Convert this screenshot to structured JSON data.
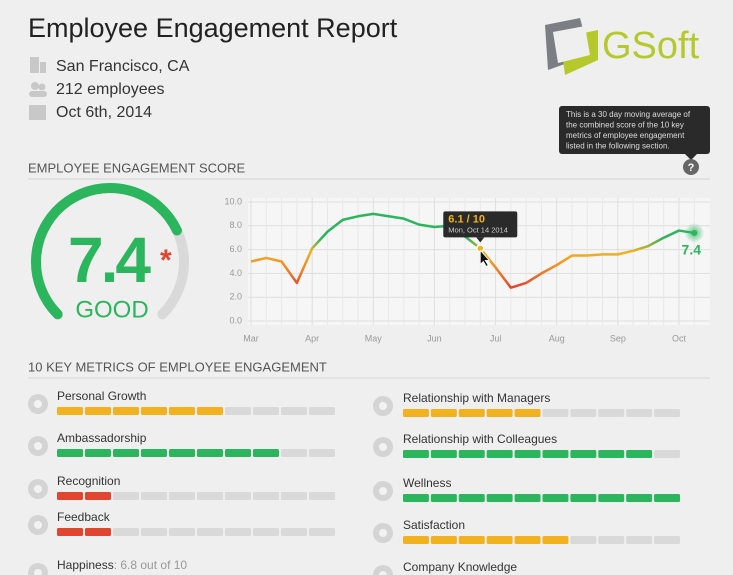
{
  "header": {
    "title": "Employee Engagement Report",
    "location": "San Francisco, CA",
    "employees": "212 employees",
    "date": "Oct 6th, 2014",
    "logo": "GSoft"
  },
  "info_tooltip": [
    "This is a 30 day moving average of",
    "the combined score of the 10 key",
    "metrics of employee engagement",
    "listed in the following section."
  ],
  "info_icon": "?",
  "score_section": {
    "title": "EMPLOYEE ENGAGEMENT SCORE",
    "score": 7.4,
    "asterisk": "*",
    "rating": "GOOD"
  },
  "chart_data": {
    "type": "line",
    "categories": [
      "Mar",
      null,
      null,
      null,
      "Apr",
      null,
      null,
      null,
      "May",
      null,
      null,
      null,
      "Jun",
      null,
      null,
      null,
      "Jul",
      null,
      null,
      null,
      "Aug",
      null,
      null,
      null,
      "Sep",
      null,
      null,
      null,
      "Oct",
      null
    ],
    "values": [
      5.0,
      5.3,
      5.0,
      3.2,
      6.1,
      7.5,
      8.5,
      8.8,
      9.0,
      8.8,
      8.6,
      8.1,
      7.9,
      8.0,
      7.1,
      6.1,
      4.5,
      2.8,
      3.2,
      4.0,
      4.7,
      5.5,
      5.5,
      5.6,
      5.6,
      5.9,
      6.3,
      7.0,
      7.6,
      7.4
    ],
    "ylim": [
      0,
      10
    ],
    "yticks": [
      {
        "value": 0,
        "label": "0.0"
      },
      {
        "value": 2,
        "label": "2.0"
      },
      {
        "value": 4,
        "label": "4.0"
      },
      {
        "value": 6,
        "label": "6.0"
      },
      {
        "value": 8,
        "label": "8.0"
      },
      {
        "value": 10,
        "label": "10.0"
      }
    ],
    "grid": true,
    "hover": {
      "index": 15,
      "label": "6.1 / 10",
      "date": "Mon, Oct 14 2014"
    },
    "end_label": "7.4"
  },
  "metrics_section": {
    "title": "10 KEY METRICS OF EMPLOYEE ENGAGEMENT",
    "left": [
      {
        "name": "Personal Growth",
        "value": 6,
        "color": "#f2b21f"
      },
      {
        "name": "Ambassadorship",
        "value": 8,
        "color": "#2bb55c"
      },
      {
        "name": "Recognition",
        "value": 2,
        "color": "#e0452f"
      },
      {
        "name": "Feedback",
        "value": 2,
        "color": "#e0452f"
      },
      {
        "name": "Happiness",
        "detail": ": 6.8 out of 10"
      }
    ],
    "right": [
      {
        "name": "Relationship with Managers",
        "value": 5,
        "color": "#f2b21f"
      },
      {
        "name": "Relationship with Colleagues",
        "value": 9,
        "color": "#2bb55c"
      },
      {
        "name": "Wellness",
        "value": 10,
        "color": "#2bb55c"
      },
      {
        "name": "Satisfaction",
        "value": 6,
        "color": "#f2b21f"
      },
      {
        "name": "Company Knowledge"
      }
    ]
  }
}
